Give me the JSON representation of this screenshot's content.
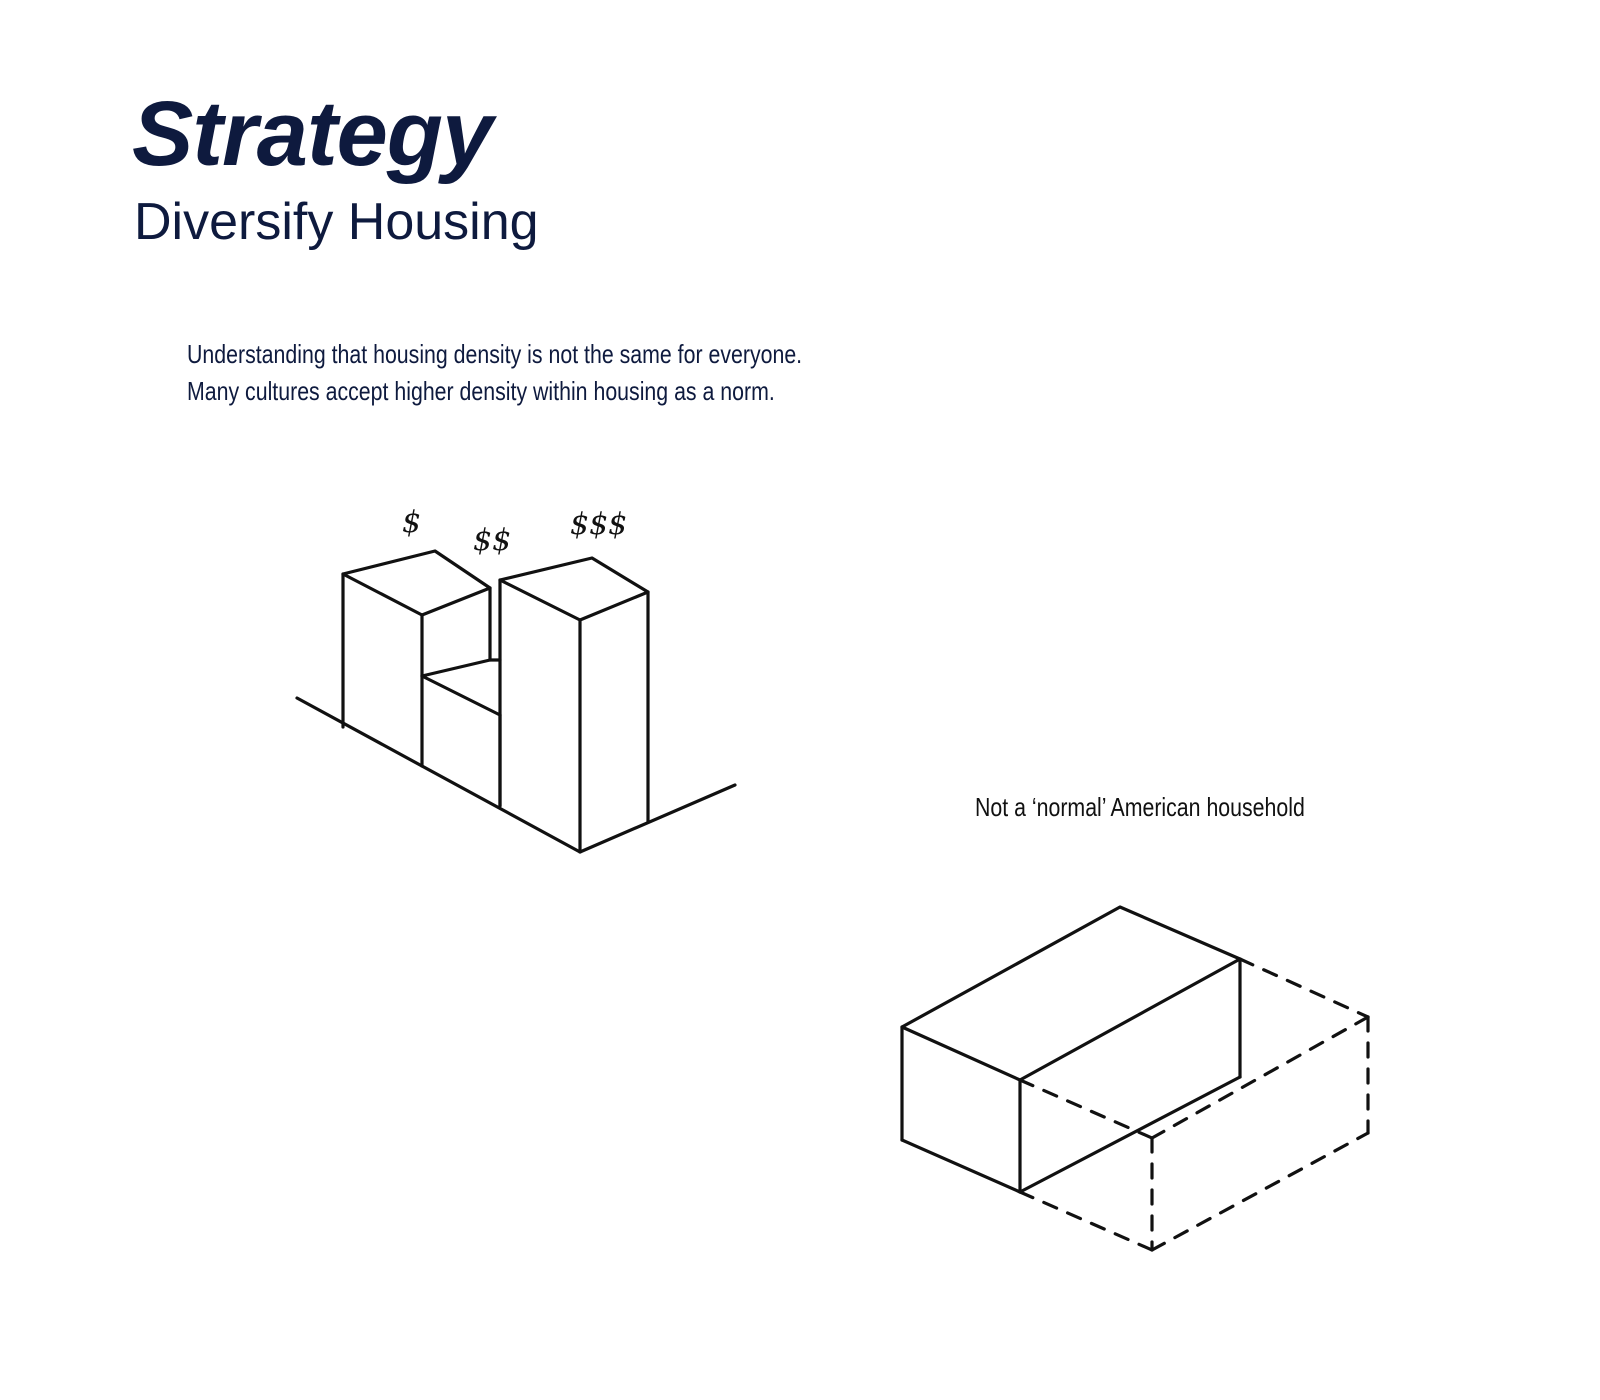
{
  "header": {
    "title": "Strategy",
    "subtitle": "Diversify Housing"
  },
  "intro": {
    "line1": "Understanding that housing density is not the same for everyone.",
    "line2": "Many cultures accept higher density within housing as a norm."
  },
  "density_diagram": {
    "price_labels": [
      "$",
      "$$",
      "$$$"
    ]
  },
  "household_diagram": {
    "caption": "Not a ‘normal’ American household"
  },
  "colors": {
    "heading": "#0e1a3e",
    "line": "#111111"
  }
}
